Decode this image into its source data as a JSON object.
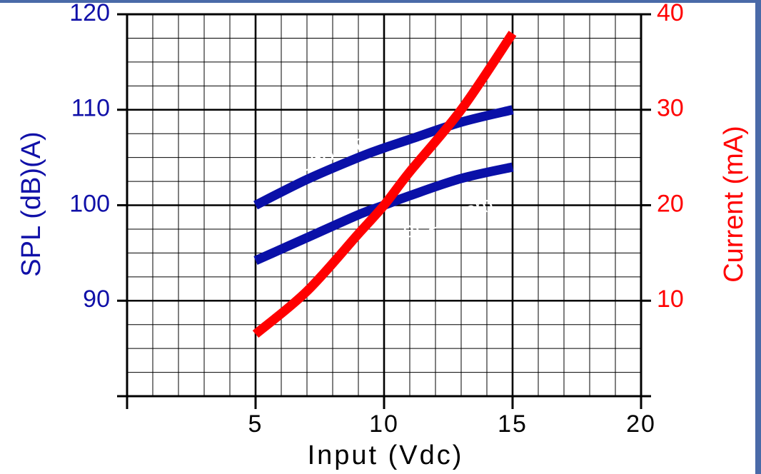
{
  "chart_data": {
    "type": "line",
    "title": "",
    "xlabel": "Input (Vdc)",
    "ylabel_left": "SPL (dB)(A)",
    "ylabel_right": "Current (mA)",
    "xlim": [
      0,
      20
    ],
    "ylim_left": [
      80,
      120
    ],
    "ylim_right": [
      0,
      40
    ],
    "x_ticks": [
      5,
      10,
      15,
      20
    ],
    "y_ticks_left": [
      90,
      100,
      110,
      120
    ],
    "y_ticks_right": [
      10,
      20,
      30,
      40
    ],
    "grid": true,
    "series": [
      {
        "axis": "left",
        "color": "#0a10a8",
        "x": [
          5,
          7,
          9,
          10,
          11,
          13,
          15
        ],
        "y": [
          100,
          102.7,
          105,
          106,
          106.9,
          108.7,
          110
        ]
      },
      {
        "axis": "left",
        "color": "#0a10a8",
        "x": [
          5,
          7,
          9,
          10,
          11,
          13,
          15
        ],
        "y": [
          94.2,
          96.6,
          99,
          100,
          101,
          102.8,
          104
        ]
      },
      {
        "axis": "right",
        "color": "#ff0000",
        "x": [
          5,
          7,
          9,
          10,
          11,
          13,
          15
        ],
        "y": [
          6.5,
          11,
          17,
          20,
          23.5,
          30,
          38
        ]
      }
    ],
    "annotations": [
      {
        "text": "at 50 cm",
        "x": 7.8,
        "y": 105.1,
        "axis": "left",
        "angle": -21
      },
      {
        "text": "at 100 cm",
        "x": 12.5,
        "y": 98.6,
        "axis": "left",
        "angle": -18
      }
    ]
  }
}
